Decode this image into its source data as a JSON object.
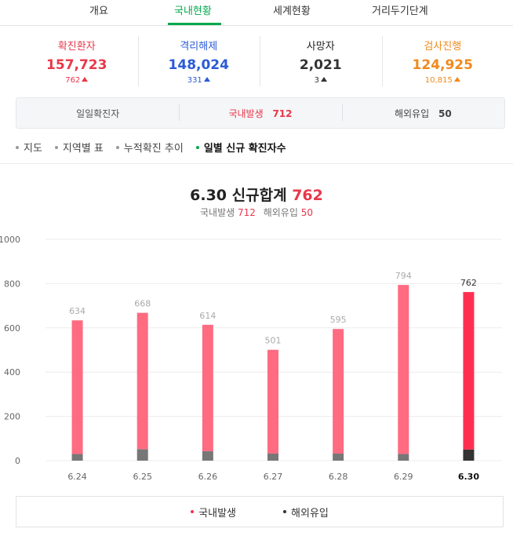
{
  "tabs": [
    {
      "label": "개요"
    },
    {
      "label": "국내현황"
    },
    {
      "label": "세계현황"
    },
    {
      "label": "거리두기단계"
    }
  ],
  "stats": [
    {
      "label": "확진환자",
      "value": "157,723",
      "delta": "762",
      "color": "#e8374a"
    },
    {
      "label": "격리해제",
      "value": "148,024",
      "delta": "331",
      "color": "#2a5bd7"
    },
    {
      "label": "사망자",
      "value": "2,021",
      "delta": "3",
      "color": "#333333"
    },
    {
      "label": "검사진행",
      "value": "124,925",
      "delta": "10,815",
      "color": "#f08a1d"
    }
  ],
  "daily": {
    "label": "일일확진자",
    "domestic_label": "국내발생",
    "domestic_value": "712",
    "overseas_label": "해외유입",
    "overseas_value": "50"
  },
  "subtabs": [
    {
      "label": "지도"
    },
    {
      "label": "지역별 표"
    },
    {
      "label": "누적확진 추이"
    },
    {
      "label": "일별 신규 확진자수"
    }
  ],
  "summary": {
    "title_prefix": "6.30 신규합계",
    "title_total": "762",
    "domestic_label": "국내발생",
    "domestic_value": "712",
    "overseas_label": "해외유입",
    "overseas_value": "50"
  },
  "legend": {
    "domestic": "국내발생",
    "overseas": "해외유입"
  },
  "chart_data": {
    "type": "bar",
    "stacked": true,
    "categories": [
      "6.24",
      "6.25",
      "6.26",
      "6.27",
      "6.28",
      "6.29",
      "6.30"
    ],
    "totals": [
      634,
      668,
      614,
      501,
      595,
      794,
      762
    ],
    "series": [
      {
        "name": "국내발생",
        "values": [
          604,
          616,
          571,
          469,
          563,
          764,
          712
        ],
        "color": "#ff6b81",
        "highlight_color": "#ff2f52"
      },
      {
        "name": "해외유입",
        "values": [
          30,
          52,
          43,
          32,
          32,
          30,
          50
        ],
        "color": "#777777",
        "highlight_color": "#333333"
      }
    ],
    "yticks": [
      0,
      200,
      400,
      600,
      800,
      1000
    ],
    "ylim": [
      0,
      1000
    ],
    "highlight_index": 6,
    "grid": true
  }
}
